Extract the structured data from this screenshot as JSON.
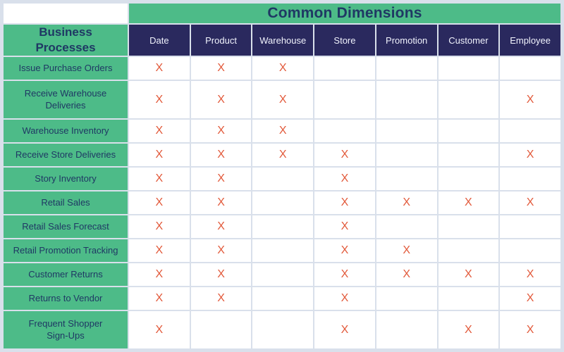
{
  "header": {
    "dimensions_title": "Common Dimensions",
    "processes_title": "Business\nProcesses"
  },
  "columns": [
    "Date",
    "Product",
    "Warehouse",
    "Store",
    "Promotion",
    "Customer",
    "Employee"
  ],
  "mark_glyph": "X",
  "colors": {
    "green": "#4dbb88",
    "navy": "#2a295e",
    "mark_orange": "#e2593a",
    "title_text": "#1f3864",
    "header_text": "#f0f2fc",
    "grid": "#d9e0eb"
  },
  "rows": [
    {
      "label": "Issue Purchase Orders",
      "marks": [
        1,
        1,
        1,
        0,
        0,
        0,
        0
      ]
    },
    {
      "label": "Receive Warehouse\nDeliveries",
      "marks": [
        1,
        1,
        1,
        0,
        0,
        0,
        1
      ]
    },
    {
      "label": "Warehouse Inventory",
      "marks": [
        1,
        1,
        1,
        0,
        0,
        0,
        0
      ]
    },
    {
      "label": "Receive Store Deliveries",
      "marks": [
        1,
        1,
        1,
        1,
        0,
        0,
        1
      ]
    },
    {
      "label": "Story Inventory",
      "marks": [
        1,
        1,
        0,
        1,
        0,
        0,
        0
      ]
    },
    {
      "label": "Retail Sales",
      "marks": [
        1,
        1,
        0,
        1,
        1,
        1,
        1
      ]
    },
    {
      "label": "Retail Sales Forecast",
      "marks": [
        1,
        1,
        0,
        1,
        0,
        0,
        0
      ]
    },
    {
      "label": "Retail Promotion Tracking",
      "marks": [
        1,
        1,
        0,
        1,
        1,
        0,
        0
      ]
    },
    {
      "label": "Customer Returns",
      "marks": [
        1,
        1,
        0,
        1,
        1,
        1,
        1
      ]
    },
    {
      "label": "Returns to Vendor",
      "marks": [
        1,
        1,
        0,
        1,
        0,
        0,
        1
      ]
    },
    {
      "label": "Frequent Shopper\nSign-Ups",
      "marks": [
        1,
        0,
        0,
        1,
        0,
        1,
        1
      ]
    }
  ]
}
